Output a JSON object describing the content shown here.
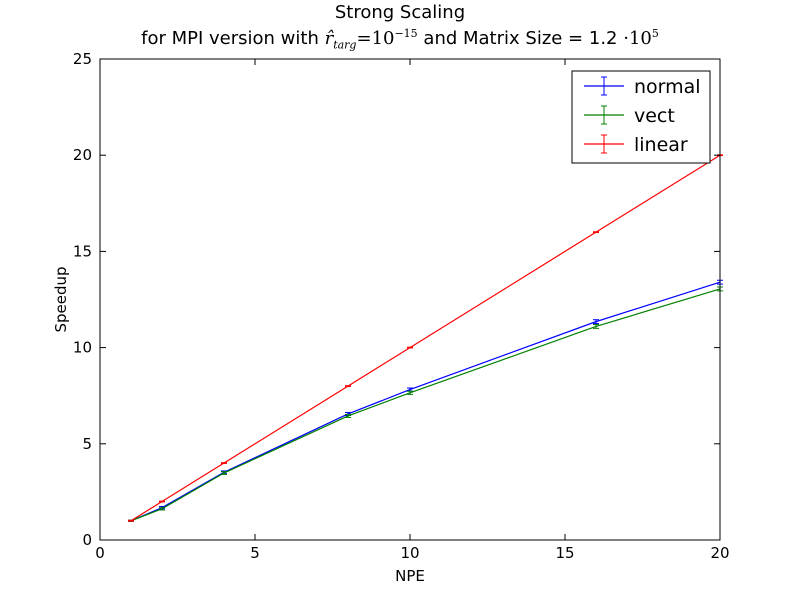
{
  "chart_data": {
    "type": "line",
    "title": "Strong Scaling",
    "subtitle": {
      "prefix": "for MPI version with ",
      "r_symbol": "r̂",
      "r_subscript": "targ",
      "equals": "=",
      "r_base": "10",
      "r_exp": "−15",
      "middle": " and Matrix Size = 1.2 ",
      "dot": "·",
      "size_base": "10",
      "size_exp": "5"
    },
    "xlabel": "NPE",
    "ylabel": "Speedup",
    "xlim": [
      0,
      20
    ],
    "ylim": [
      0,
      25
    ],
    "xticks": [
      0,
      5,
      10,
      15,
      20
    ],
    "yticks": [
      0,
      5,
      10,
      15,
      20,
      25
    ],
    "grid": false,
    "legend_position": "top-right",
    "series": [
      {
        "name": "normal",
        "color": "#0000ff",
        "x": [
          1,
          2,
          4,
          8,
          10,
          16,
          20
        ],
        "y": [
          1.0,
          1.68,
          3.52,
          6.55,
          7.82,
          11.35,
          13.4
        ],
        "err": [
          0.03,
          0.06,
          0.07,
          0.08,
          0.08,
          0.1,
          0.1
        ]
      },
      {
        "name": "vect",
        "color": "#008000",
        "x": [
          1,
          2,
          4,
          8,
          10,
          16,
          20
        ],
        "y": [
          1.0,
          1.62,
          3.48,
          6.45,
          7.65,
          11.1,
          13.05
        ],
        "err": [
          0.03,
          0.06,
          0.07,
          0.08,
          0.08,
          0.1,
          0.1
        ]
      },
      {
        "name": "linear",
        "color": "#ff0000",
        "x": [
          1,
          2,
          4,
          8,
          10,
          16,
          20
        ],
        "y": [
          1,
          2,
          4,
          8,
          10,
          16,
          20
        ],
        "err": [
          0.02,
          0.02,
          0.02,
          0.02,
          0.02,
          0.02,
          0.02
        ]
      }
    ]
  }
}
